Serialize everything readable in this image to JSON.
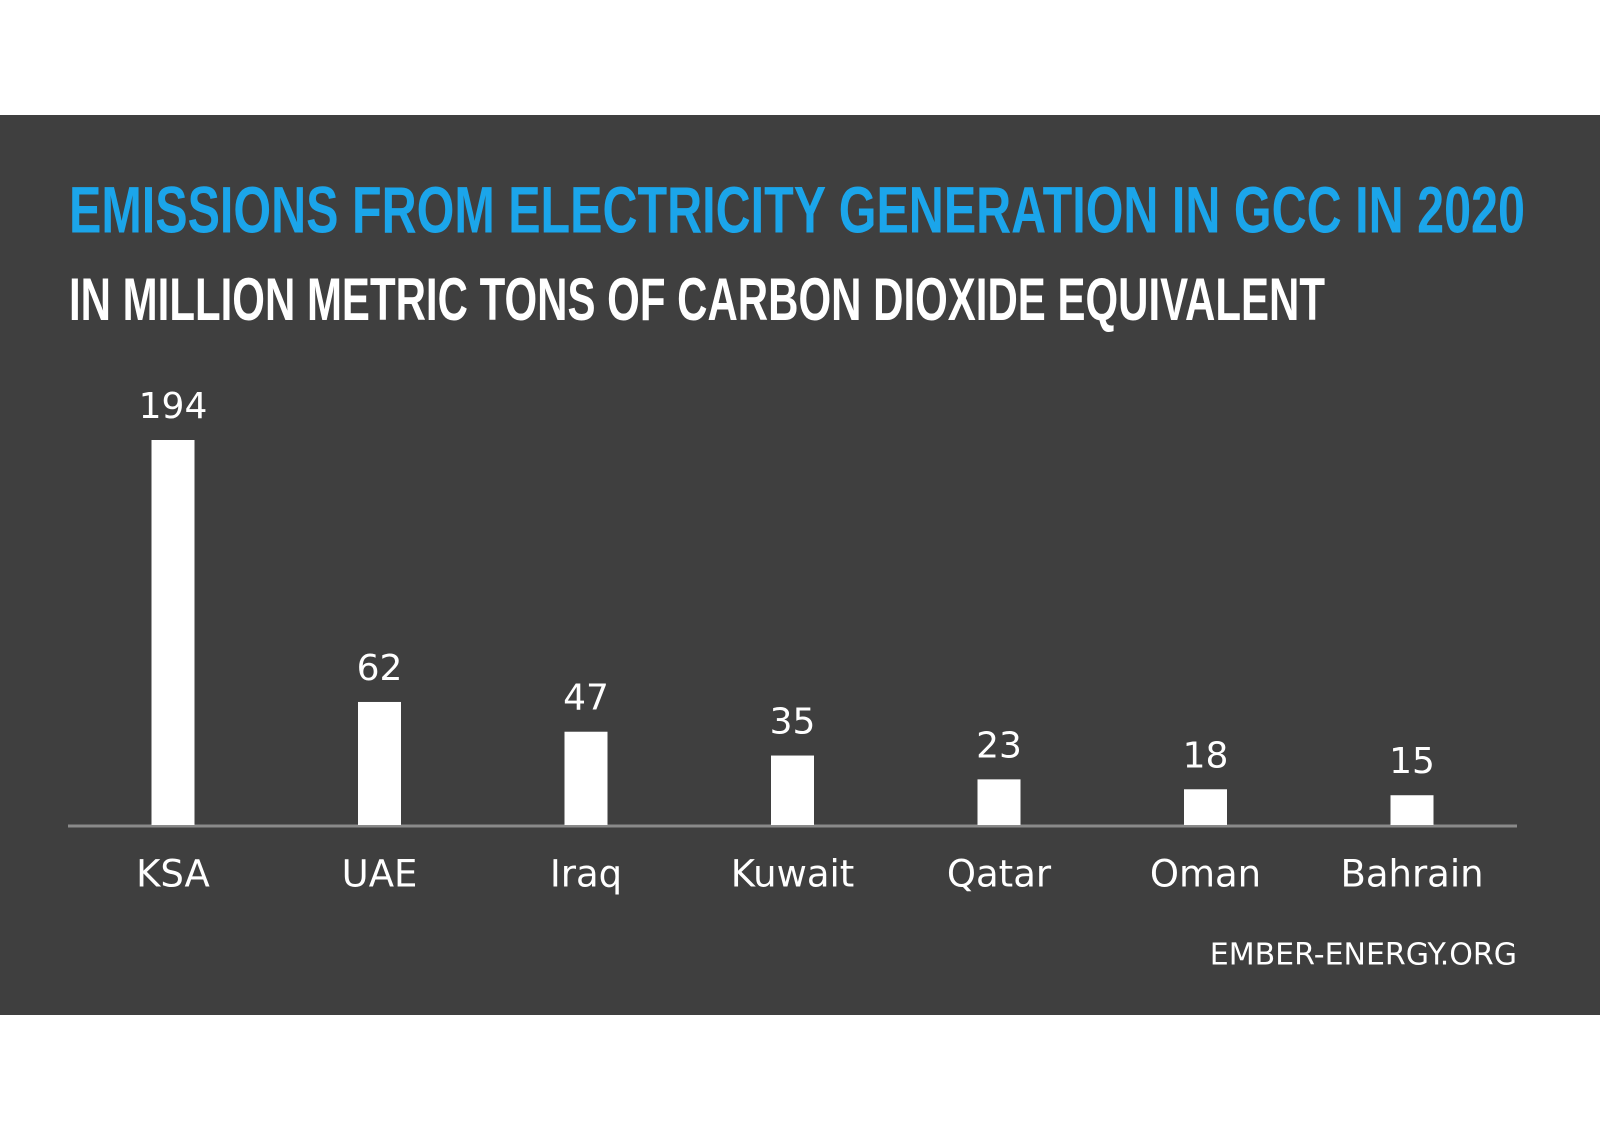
{
  "chart_data": {
    "type": "bar",
    "title": "EMISSIONS FROM ELECTRICITY GENERATION IN GCC IN 2020",
    "subtitle": "IN MILLION METRIC TONS OF CARBON DIOXIDE EQUIVALENT",
    "categories": [
      "KSA",
      "UAE",
      "Iraq",
      "Kuwait",
      "Qatar",
      "Oman",
      "Bahrain"
    ],
    "values": [
      194,
      62,
      47,
      35,
      23,
      18,
      15
    ],
    "color": "#ffffff",
    "source": "EMBER-ENERGY.ORG"
  }
}
